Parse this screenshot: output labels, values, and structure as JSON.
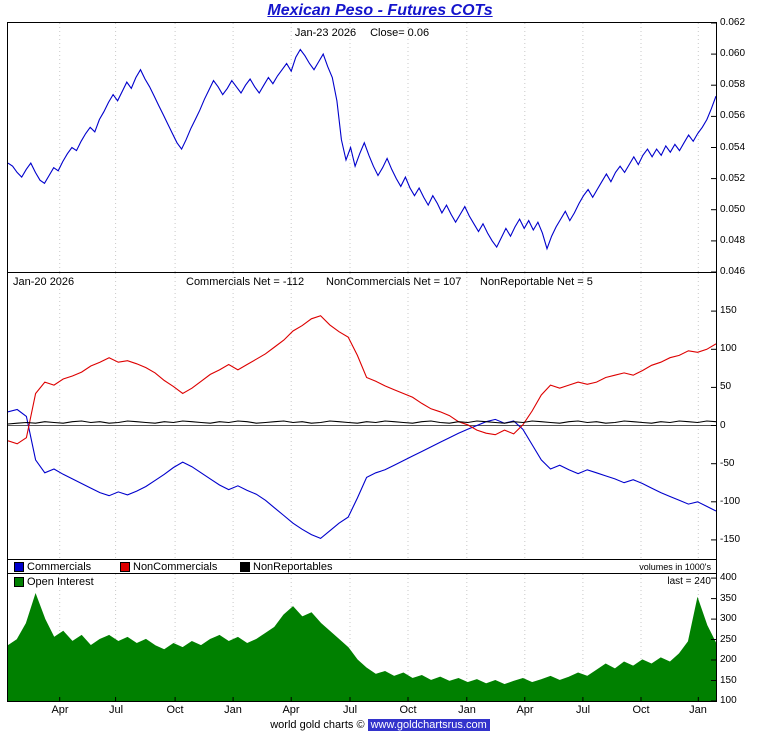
{
  "title": "Mexican Peso - Futures COTs",
  "colors": {
    "price": "#0000cc",
    "commercials": "#0000cc",
    "noncommercials": "#dd0000",
    "nonreportables": "#000000",
    "open_interest": "#008000",
    "title_blue": "#1414cc",
    "footer_badge": "#3333cc"
  },
  "price_panel": {
    "annotation_date": "Jan-23 2026",
    "annotation_close": "Close= 0.06",
    "yticks": {
      "labels": [
        "0.062",
        "0.060",
        "0.058",
        "0.056",
        "0.054",
        "0.052",
        "0.050",
        "0.048",
        "0.046"
      ],
      "values": [
        0.062,
        0.06,
        0.058,
        0.056,
        0.054,
        0.052,
        0.05,
        0.048,
        0.046
      ]
    }
  },
  "cot_panel": {
    "header_date": "Jan-20 2026",
    "commercials_net": "Commercials Net = -112",
    "noncommercials_net": "NonCommercials Net = 107",
    "nonreportable_net": "NonReportable Net = 5",
    "volumes_note": "volumes in 1000's",
    "legend": [
      {
        "label": "Commercials",
        "color": "#0000cc"
      },
      {
        "label": "NonCommercials",
        "color": "#dd0000"
      },
      {
        "label": "NonReportables",
        "color": "#000000"
      }
    ],
    "yticks": {
      "labels": [
        "150",
        "100",
        "50",
        "0",
        "-50",
        "-100",
        "-150"
      ],
      "values": [
        150,
        100,
        50,
        0,
        -50,
        -100,
        -150
      ]
    }
  },
  "oi_panel": {
    "legend_label": "Open Interest",
    "legend_color": "#008000",
    "last_note": "last = 240",
    "yticks": {
      "labels": [
        "400",
        "350",
        "300",
        "250",
        "200",
        "150",
        "100"
      ],
      "values": [
        400,
        350,
        300,
        250,
        200,
        150,
        100
      ]
    }
  },
  "x_axis": {
    "ticks": [
      {
        "label": "Apr",
        "pos": 0.073
      },
      {
        "label": "Jul",
        "pos": 0.152
      },
      {
        "label": "Oct",
        "pos": 0.236
      },
      {
        "label": "Jan",
        "pos": 0.318
      },
      {
        "label": "Apr",
        "pos": 0.4
      },
      {
        "label": "Jul",
        "pos": 0.483
      },
      {
        "label": "Oct",
        "pos": 0.565
      },
      {
        "label": "Jan",
        "pos": 0.648
      },
      {
        "label": "Apr",
        "pos": 0.73
      },
      {
        "label": "Jul",
        "pos": 0.812
      },
      {
        "label": "Oct",
        "pos": 0.894
      },
      {
        "label": "Jan",
        "pos": 0.975
      }
    ]
  },
  "footer": {
    "prefix": "world gold charts © ",
    "site": "www.goldchartsrus.com"
  },
  "chart_data": [
    {
      "type": "line",
      "name": "Mexican Peso futures price",
      "ylim": [
        0.046,
        0.062
      ],
      "annotation": "Jan-23 2026 Close= 0.06",
      "series": [
        {
          "name": "MXN futures close",
          "color": "#0000cc",
          "values": [
            0.053,
            0.0528,
            0.0524,
            0.0521,
            0.0526,
            0.053,
            0.0524,
            0.0519,
            0.0517,
            0.0522,
            0.0527,
            0.0525,
            0.0531,
            0.0536,
            0.054,
            0.0538,
            0.0544,
            0.0549,
            0.0553,
            0.055,
            0.0558,
            0.0563,
            0.0569,
            0.0574,
            0.057,
            0.0576,
            0.0582,
            0.0578,
            0.0585,
            0.059,
            0.0584,
            0.0579,
            0.0573,
            0.0567,
            0.0561,
            0.0555,
            0.0549,
            0.0543,
            0.0539,
            0.0545,
            0.0552,
            0.0558,
            0.0564,
            0.0571,
            0.0577,
            0.0583,
            0.0579,
            0.0574,
            0.0578,
            0.0583,
            0.0579,
            0.0575,
            0.058,
            0.0584,
            0.0579,
            0.0575,
            0.058,
            0.0585,
            0.0581,
            0.0586,
            0.059,
            0.0594,
            0.0589,
            0.0598,
            0.0603,
            0.0599,
            0.0594,
            0.059,
            0.0595,
            0.06,
            0.0592,
            0.0585,
            0.057,
            0.0545,
            0.0532,
            0.054,
            0.0528,
            0.0536,
            0.0543,
            0.0535,
            0.0528,
            0.0522,
            0.0527,
            0.0533,
            0.0526,
            0.052,
            0.0515,
            0.0521,
            0.0514,
            0.0509,
            0.0514,
            0.0508,
            0.0503,
            0.0509,
            0.0504,
            0.0498,
            0.0503,
            0.0497,
            0.0492,
            0.0497,
            0.0502,
            0.0496,
            0.0491,
            0.0486,
            0.0491,
            0.0485,
            0.048,
            0.0476,
            0.0482,
            0.0488,
            0.0483,
            0.0489,
            0.0494,
            0.0488,
            0.0493,
            0.0487,
            0.0492,
            0.0485,
            0.0475,
            0.0483,
            0.0489,
            0.0494,
            0.0499,
            0.0493,
            0.0498,
            0.0504,
            0.0509,
            0.0513,
            0.0508,
            0.0513,
            0.0518,
            0.0523,
            0.0518,
            0.0524,
            0.0528,
            0.0524,
            0.0529,
            0.0534,
            0.0529,
            0.0535,
            0.0539,
            0.0534,
            0.0539,
            0.0535,
            0.0541,
            0.0537,
            0.0542,
            0.0538,
            0.0543,
            0.0548,
            0.0544,
            0.0549,
            0.0553,
            0.0558,
            0.0565,
            0.0573
          ]
        }
      ]
    },
    {
      "type": "line",
      "name": "COT net positions (contracts in 1000's)",
      "ylim": [
        -175,
        200
      ],
      "zero_line": true,
      "series": [
        {
          "name": "Commercials",
          "color": "#0000cc",
          "last": -112,
          "values": [
            18,
            21,
            12,
            -45,
            -62,
            -57,
            -64,
            -70,
            -76,
            -82,
            -88,
            -92,
            -87,
            -91,
            -86,
            -80,
            -72,
            -64,
            -55,
            -48,
            -54,
            -62,
            -70,
            -78,
            -84,
            -79,
            -85,
            -90,
            -98,
            -108,
            -118,
            -128,
            -136,
            -143,
            -148,
            -138,
            -128,
            -120,
            -95,
            -68,
            -62,
            -58,
            -52,
            -46,
            -40,
            -34,
            -28,
            -22,
            -16,
            -10,
            -5,
            0,
            5,
            8,
            3,
            6,
            -5,
            -25,
            -45,
            -57,
            -52,
            -58,
            -63,
            -58,
            -62,
            -66,
            -70,
            -75,
            -71,
            -76,
            -82,
            -88,
            -93,
            -98,
            -103,
            -100,
            -106,
            -112
          ]
        },
        {
          "name": "NonCommercials",
          "color": "#dd0000",
          "last": 107,
          "values": [
            -20,
            -24,
            -16,
            42,
            57,
            53,
            61,
            65,
            70,
            78,
            83,
            89,
            83,
            85,
            81,
            76,
            69,
            59,
            51,
            42,
            49,
            58,
            67,
            73,
            80,
            73,
            80,
            87,
            94,
            103,
            112,
            124,
            131,
            140,
            144,
            132,
            123,
            116,
            92,
            63,
            58,
            52,
            47,
            42,
            37,
            29,
            22,
            18,
            13,
            5,
            1,
            -6,
            -10,
            -12,
            -6,
            -11,
            1,
            19,
            40,
            53,
            49,
            53,
            57,
            54,
            57,
            63,
            66,
            69,
            66,
            72,
            79,
            83,
            89,
            92,
            98,
            96,
            100,
            107
          ]
        },
        {
          "name": "NonReportables",
          "color": "#000000",
          "last": 5,
          "values": [
            2,
            3,
            4,
            3,
            5,
            4,
            3,
            5,
            6,
            4,
            5,
            3,
            4,
            6,
            5,
            4,
            3,
            5,
            4,
            6,
            5,
            4,
            3,
            5,
            4,
            6,
            5,
            3,
            4,
            5,
            6,
            4,
            5,
            3,
            4,
            6,
            5,
            4,
            3,
            5,
            4,
            6,
            5,
            4,
            3,
            5,
            6,
            4,
            3,
            5,
            4,
            6,
            5,
            4,
            3,
            5,
            4,
            6,
            5,
            4,
            3,
            5,
            6,
            4,
            5,
            3,
            4,
            6,
            5,
            4,
            3,
            5,
            4,
            6,
            5,
            4,
            6,
            5
          ]
        }
      ]
    },
    {
      "type": "area",
      "name": "Open Interest (contracts in 1000's)",
      "ylim": [
        100,
        410
      ],
      "series": [
        {
          "name": "Open Interest",
          "color": "#008000",
          "last": 240,
          "values": [
            235,
            250,
            290,
            360,
            300,
            255,
            270,
            245,
            260,
            235,
            250,
            260,
            245,
            255,
            240,
            250,
            235,
            225,
            240,
            230,
            245,
            235,
            250,
            260,
            245,
            255,
            240,
            250,
            265,
            280,
            310,
            330,
            305,
            315,
            290,
            270,
            250,
            230,
            200,
            180,
            165,
            172,
            160,
            168,
            155,
            162,
            150,
            158,
            148,
            155,
            145,
            152,
            142,
            150,
            140,
            148,
            155,
            145,
            152,
            160,
            150,
            158,
            168,
            160,
            175,
            190,
            178,
            195,
            185,
            200,
            190,
            205,
            195,
            215,
            245,
            350,
            285,
            240
          ]
        }
      ]
    }
  ]
}
